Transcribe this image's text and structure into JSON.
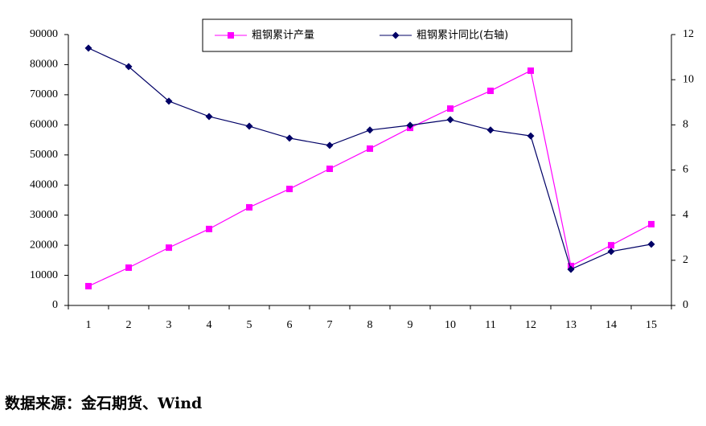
{
  "chart_data": {
    "type": "line",
    "categories": [
      "1",
      "2",
      "3",
      "4",
      "5",
      "6",
      "7",
      "8",
      "9",
      "10",
      "11",
      "12",
      "13",
      "14",
      "15"
    ],
    "series": [
      {
        "name": "粗钢累计产量",
        "color": "#ff00ff",
        "marker": "square",
        "values": [
          6400,
          12550,
          19200,
          25400,
          32600,
          38700,
          45400,
          52100,
          59000,
          65400,
          71300,
          78000,
          13100,
          20000,
          27000
        ]
      },
      {
        "name": "粗钢累计同比(右轴)",
        "color": "#000066",
        "marker": "diamond",
        "axis": "y2",
        "values": [
          11.4,
          10.58,
          9.05,
          8.37,
          7.94,
          7.41,
          7.09,
          7.77,
          7.98,
          8.23,
          7.77,
          7.51,
          1.6,
          2.39,
          2.71
        ]
      }
    ],
    "ylim": [
      0,
      90000
    ],
    "yticks": [
      0,
      10000,
      20000,
      30000,
      40000,
      50000,
      60000,
      70000,
      80000,
      90000
    ],
    "y2lim": [
      0,
      12
    ],
    "y2ticks": [
      0,
      2,
      4,
      6,
      8,
      10,
      12
    ],
    "grid": false,
    "legend": "top",
    "note": "数据来源：金石期货、Wind"
  }
}
